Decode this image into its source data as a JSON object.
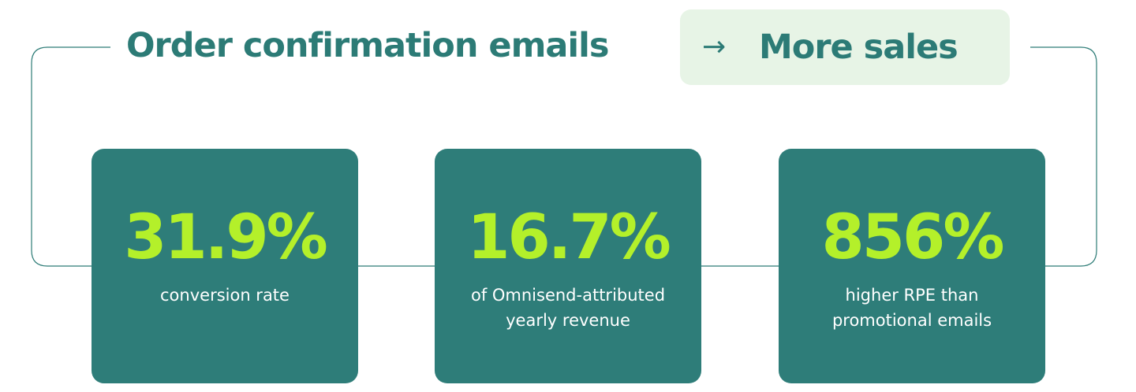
{
  "header": {
    "title": "Order confirmation emails",
    "arrow_symbol": "→",
    "result_label": "More sales",
    "arrow_icon": "right-arrow-icon"
  },
  "stats": [
    {
      "value": "31.9%",
      "caption_lines": [
        "conversion rate"
      ]
    },
    {
      "value": "16.7%",
      "caption_lines": [
        "of Omnisend-attributed",
        "yearly revenue"
      ]
    },
    {
      "value": "856%",
      "caption_lines": [
        "higher RPE than",
        "promotional emails"
      ]
    }
  ],
  "colors": {
    "brand_teal": "#2c7b76",
    "card_background": "#2e7d79",
    "highlight_lime": "#b4f02a",
    "pill_background": "#e7f4e6",
    "connector_line": "#2c7b76"
  }
}
